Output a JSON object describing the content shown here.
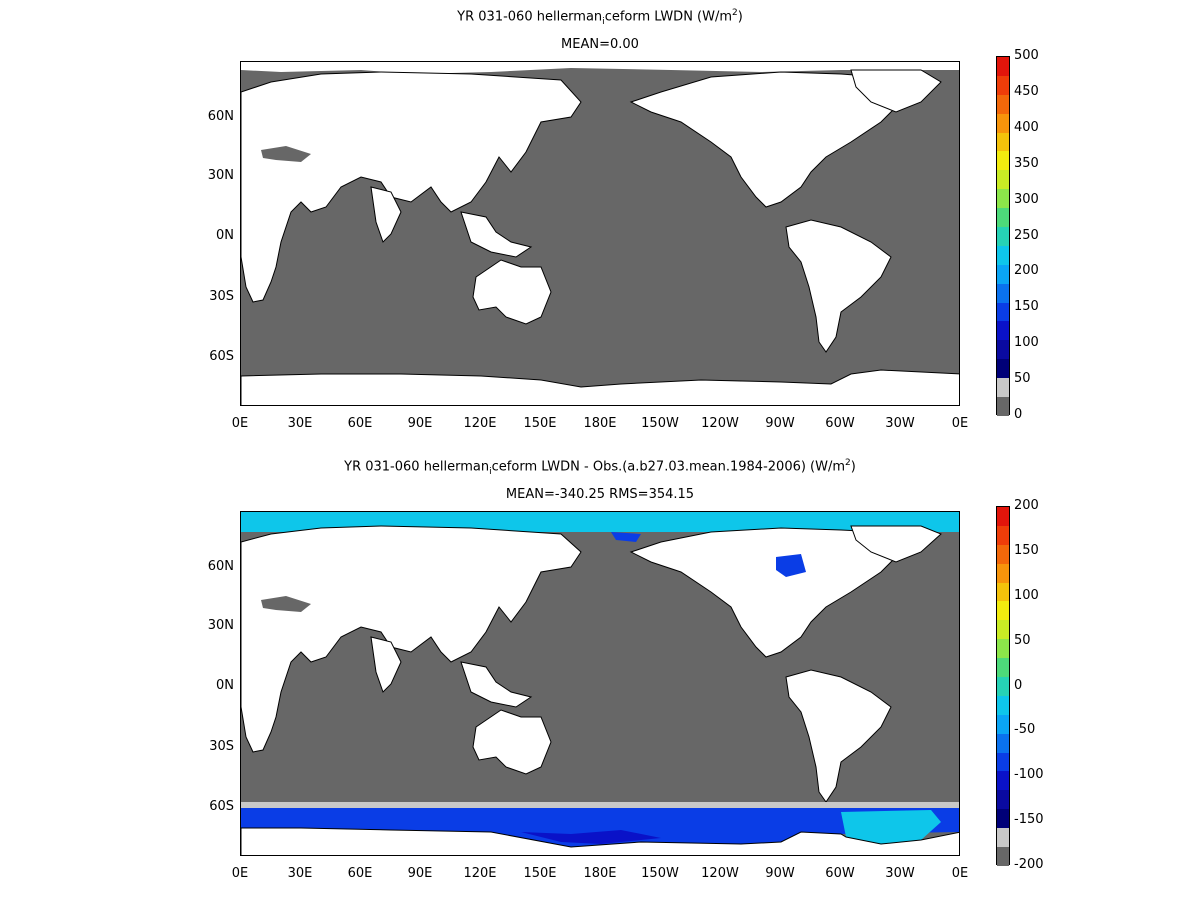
{
  "panels": [
    {
      "title_pre": "YR 031-060 hellerman",
      "title_sub": "i",
      "title_mid": "ceform LWDN (W/m",
      "title_sup": "2",
      "title_post": ")",
      "subtitle": "MEAN=0.00",
      "colorbar_labels": [
        "500",
        "450",
        "400",
        "350",
        "300",
        "250",
        "200",
        "150",
        "100",
        "50",
        "0"
      ]
    },
    {
      "title_pre": "YR 031-060 hellerman",
      "title_sub": "i",
      "title_mid": "ceform LWDN - Obs.(a.b27.03.mean.1984-2006) (W/m",
      "title_sup": "2",
      "title_post": ")",
      "subtitle": "MEAN=-340.25 RMS=354.15",
      "colorbar_labels": [
        "200",
        "150",
        "100",
        "50",
        "0",
        "-50",
        "-100",
        "-150",
        "-200"
      ]
    }
  ],
  "lat_labels": [
    "60N",
    "30N",
    "0N",
    "30S",
    "60S"
  ],
  "lon_labels": [
    "0E",
    "30E",
    "60E",
    "90E",
    "120E",
    "150E",
    "180E",
    "150W",
    "120W",
    "90W",
    "60W",
    "30W",
    "0E"
  ],
  "colors": {
    "ocean": "#676767",
    "land": "#ffffff",
    "missing": "#c8c8c8",
    "colorbar": [
      "#e2150b",
      "#ef3d09",
      "#f3680a",
      "#f7940b",
      "#f4c20b",
      "#f2ec0f",
      "#c9ec25",
      "#8ce64a",
      "#4dda7a",
      "#26d2b5",
      "#0ec6ea",
      "#0aa5f5",
      "#0a72ef",
      "#0a3de6",
      "#0a12c8",
      "#0a0aa0",
      "#000078",
      "#c8c8c8",
      "#676767"
    ]
  }
}
